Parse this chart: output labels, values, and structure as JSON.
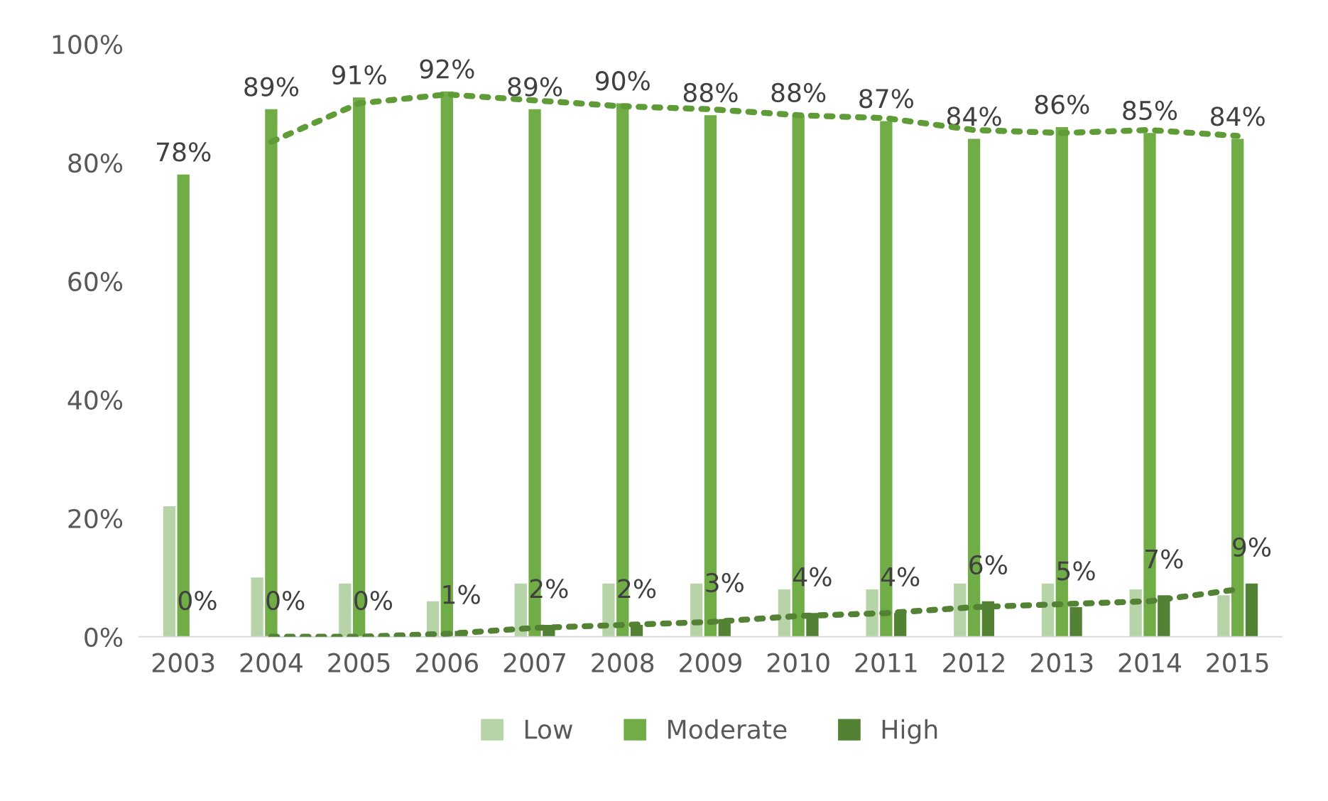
{
  "chart_data": {
    "type": "bar",
    "categories": [
      "2003",
      "2004",
      "2005",
      "2006",
      "2007",
      "2008",
      "2009",
      "2010",
      "2011",
      "2012",
      "2013",
      "2014",
      "2015"
    ],
    "series": [
      {
        "name": "Low",
        "color": "#b6d4a7",
        "values": [
          22,
          10,
          9,
          6,
          9,
          9,
          9,
          8,
          8,
          9,
          9,
          8,
          7
        ]
      },
      {
        "name": "Moderate",
        "color": "#70ad47",
        "values": [
          78,
          89,
          91,
          92,
          89,
          90,
          88,
          88,
          87,
          84,
          86,
          85,
          84
        ],
        "value_labels": [
          "78%",
          "89%",
          "91%",
          "92%",
          "89%",
          "90%",
          "88%",
          "88%",
          "87%",
          "84%",
          "86%",
          "85%",
          "84%"
        ]
      },
      {
        "name": "High",
        "color": "#548235",
        "values": [
          0,
          0,
          0,
          1,
          2,
          2,
          3,
          4,
          4,
          6,
          5,
          7,
          9
        ],
        "value_labels": [
          "0%",
          "0%",
          "0%",
          "1%",
          "2%",
          "2%",
          "3%",
          "4%",
          "4%",
          "6%",
          "5%",
          "7%",
          "9%"
        ]
      },
      {
        "type": "line",
        "line_style": "dotted",
        "color": "#5f9c38",
        "values": [
          null,
          83.5,
          90,
          91.5,
          90.5,
          89.5,
          89,
          88,
          87.5,
          85.5,
          85,
          85.5,
          84.5
        ]
      },
      {
        "type": "line",
        "line_style": "dotted",
        "color": "#548235",
        "values": [
          null,
          0,
          0,
          0.5,
          1.5,
          2,
          2.5,
          3.5,
          4,
          5,
          5.5,
          6,
          8
        ]
      }
    ],
    "ylim": [
      0,
      100
    ],
    "yticks": [
      {
        "value": 0,
        "label": "0%"
      },
      {
        "value": 20,
        "label": "20%"
      },
      {
        "value": 40,
        "label": "40%"
      },
      {
        "value": 60,
        "label": "60%"
      },
      {
        "value": 80,
        "label": "80%"
      },
      {
        "value": 100,
        "label": "100%"
      }
    ],
    "legend": "bottom",
    "grid": false
  }
}
